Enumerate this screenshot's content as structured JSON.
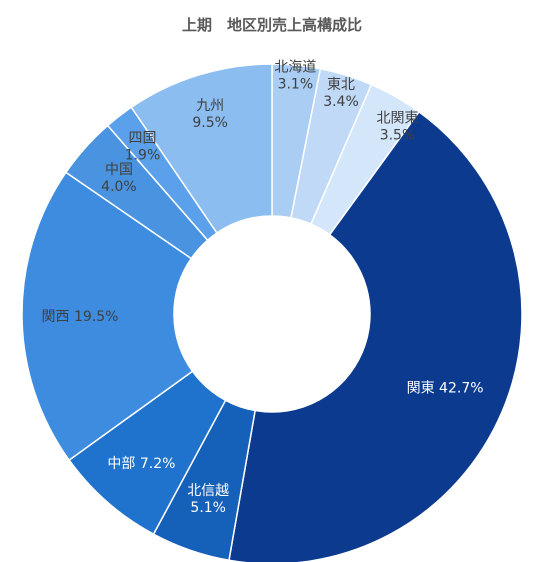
{
  "chart_data": {
    "type": "pie",
    "subtype": "donut",
    "title": "上期　地区別売上高構成比",
    "legend": "none",
    "unit": "%",
    "slices": [
      {
        "name": "北海道",
        "value": 3.1,
        "color": "#a9cdf3",
        "label_lines": [
          "北海道",
          "3.1%"
        ],
        "label_tone": "dark"
      },
      {
        "name": "東北",
        "value": 3.4,
        "color": "#bfd9f6",
        "label_lines": [
          "東北",
          "3.4%"
        ],
        "label_tone": "dark"
      },
      {
        "name": "北関東",
        "value": 3.5,
        "color": "#d4e6fa",
        "label_lines": [
          "北関東",
          "3.5%"
        ],
        "label_tone": "dark"
      },
      {
        "name": "関東",
        "value": 42.7,
        "color": "#0b3a8f",
        "label_lines": [
          "関東 42.7%"
        ],
        "label_tone": "light"
      },
      {
        "name": "北信越",
        "value": 5.1,
        "color": "#1560b8",
        "label_lines": [
          "北信越",
          "5.1%"
        ],
        "label_tone": "light"
      },
      {
        "name": "中部",
        "value": 7.2,
        "color": "#1f73cc",
        "label_lines": [
          "中部 7.2%"
        ],
        "label_tone": "light"
      },
      {
        "name": "関西",
        "value": 19.5,
        "color": "#3d8cdf",
        "label_lines": [
          "関西 19.5%"
        ],
        "label_tone": "dark"
      },
      {
        "name": "中国",
        "value": 4.0,
        "color": "#4a93e0",
        "label_lines": [
          "中国",
          "4.0%"
        ],
        "label_tone": "dark"
      },
      {
        "name": "四国",
        "value": 1.9,
        "color": "#5aa0ea",
        "label_lines": [
          "四国",
          "1.9%"
        ],
        "label_tone": "dark"
      },
      {
        "name": "九州",
        "value": 9.5,
        "color": "#8bbdf0",
        "label_lines": [
          "九州",
          "9.5%"
        ],
        "label_tone": "dark"
      }
    ]
  }
}
